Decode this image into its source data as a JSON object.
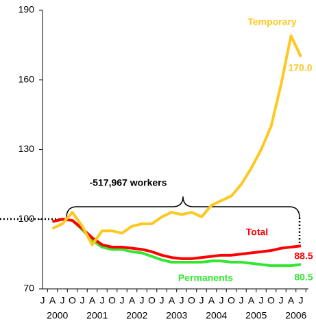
{
  "chart_data": {
    "type": "line",
    "annotation": "-517,967 workers",
    "categories": [
      "J",
      "A",
      "J",
      "O",
      "J",
      "A",
      "J",
      "O",
      "J",
      "A",
      "J",
      "O",
      "J",
      "A",
      "J",
      "O",
      "J",
      "A",
      "J",
      "O",
      "J",
      "A",
      "J",
      "O",
      "J",
      "A",
      "J"
    ],
    "years": [
      "2000",
      "2001",
      "2002",
      "2003",
      "2004",
      "2005",
      "2006"
    ],
    "ylim": [
      70,
      190
    ],
    "yticks": [
      70,
      100,
      130,
      160,
      190
    ],
    "series": [
      {
        "name": "Permanents",
        "color": "#33e633",
        "values": [
          null,
          99,
          100,
          99.5,
          95.5,
          91,
          88,
          87,
          87,
          86,
          85.5,
          84,
          82.5,
          81.5,
          81.5,
          81.5,
          81.5,
          82,
          82,
          81.5,
          81.5,
          81,
          80.5,
          80,
          80,
          80,
          80.5
        ],
        "value_labels": [
          null,
          null,
          null,
          null,
          null,
          null,
          null,
          null,
          null,
          null,
          null,
          null,
          null,
          null,
          null,
          null,
          null,
          null,
          null,
          null,
          null,
          null,
          null,
          null,
          null,
          null,
          "80.5"
        ]
      },
      {
        "name": "Total",
        "color": "#ff0000",
        "values": [
          null,
          99,
          100,
          99.5,
          96,
          92,
          89,
          88,
          88,
          87.5,
          87,
          86,
          84.5,
          83.5,
          83,
          83,
          83.5,
          84,
          84.5,
          84.5,
          85,
          85.5,
          86,
          86.5,
          87.5,
          88,
          88.5
        ],
        "value_labels": [
          null,
          null,
          null,
          null,
          null,
          null,
          null,
          null,
          null,
          null,
          null,
          null,
          null,
          null,
          null,
          null,
          null,
          null,
          null,
          null,
          null,
          null,
          null,
          null,
          null,
          null,
          "88.5"
        ]
      },
      {
        "name": "Temporary",
        "color": "#ffc820",
        "values": [
          null,
          96,
          98,
          103,
          97,
          89,
          95,
          95,
          94,
          97,
          98,
          98,
          101,
          103,
          102,
          103,
          101,
          106,
          108,
          110,
          115,
          122,
          130,
          140,
          158,
          179,
          170
        ],
        "value_labels": [
          null,
          null,
          null,
          null,
          null,
          null,
          null,
          null,
          null,
          null,
          null,
          null,
          null,
          null,
          null,
          null,
          null,
          null,
          null,
          null,
          null,
          null,
          null,
          null,
          null,
          null,
          "170.0"
        ]
      }
    ]
  }
}
